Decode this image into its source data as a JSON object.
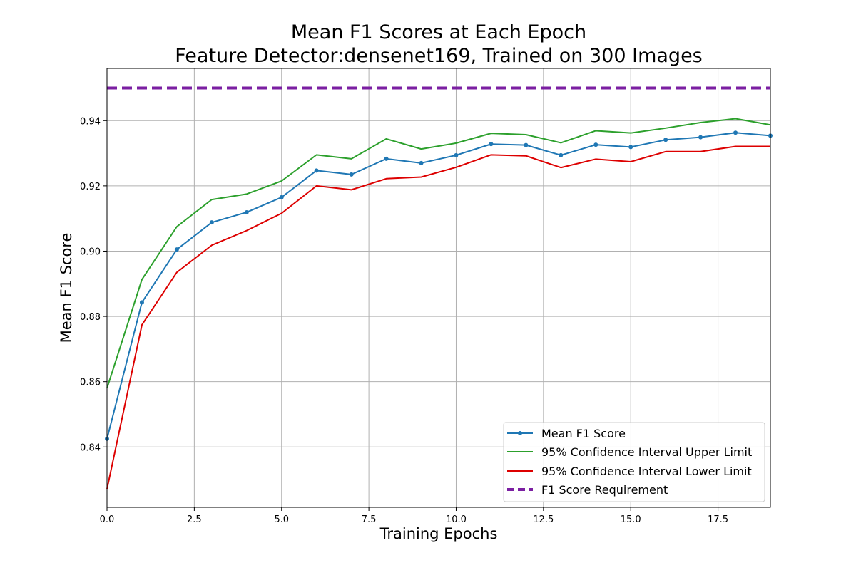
{
  "chart_data": {
    "type": "line",
    "title_line1": "Mean F1 Scores at Each Epoch",
    "title_line2": "Feature Detector:densenet169, Trained on 300 Images",
    "xlabel": "Training Epochs",
    "ylabel": "Mean F1 Score",
    "xlim": [
      0,
      19
    ],
    "ylim": [
      0.8215,
      0.956
    ],
    "xticks": [
      0.0,
      2.5,
      5.0,
      7.5,
      10.0,
      12.5,
      15.0,
      17.5
    ],
    "xtick_labels": [
      "0.0",
      "2.5",
      "5.0",
      "7.5",
      "10.0",
      "12.5",
      "15.0",
      "17.5"
    ],
    "yticks": [
      0.84,
      0.86,
      0.88,
      0.9,
      0.92,
      0.94
    ],
    "ytick_labels": [
      "0.84",
      "0.86",
      "0.88",
      "0.90",
      "0.92",
      "0.94"
    ],
    "grid": true,
    "legend_position": "lower-right",
    "x": [
      0,
      1,
      2,
      3,
      4,
      5,
      6,
      7,
      8,
      9,
      10,
      11,
      12,
      13,
      14,
      15,
      16,
      17,
      18,
      19
    ],
    "series": [
      {
        "name": "Mean F1 Score",
        "color": "#1f77b4",
        "style": "solid-markers",
        "values": [
          0.8425,
          0.8843,
          0.9005,
          0.9088,
          0.9119,
          0.9165,
          0.9247,
          0.9235,
          0.9283,
          0.927,
          0.9294,
          0.9328,
          0.9325,
          0.9294,
          0.9326,
          0.9319,
          0.9341,
          0.9349,
          0.9363,
          0.9354
        ]
      },
      {
        "name": "95% Confidence Interval Upper Limit",
        "color": "#2ca02c",
        "style": "solid",
        "values": [
          0.858,
          0.8913,
          0.9075,
          0.9158,
          0.9175,
          0.9215,
          0.9295,
          0.9283,
          0.9344,
          0.9313,
          0.9331,
          0.9361,
          0.9357,
          0.9332,
          0.9369,
          0.9362,
          0.9377,
          0.9394,
          0.9406,
          0.9387
        ]
      },
      {
        "name": "95% Confidence Interval Lower Limit",
        "color": "#dd0000",
        "style": "solid",
        "values": [
          0.8271,
          0.8774,
          0.8935,
          0.9018,
          0.9063,
          0.9116,
          0.92,
          0.9188,
          0.9222,
          0.9227,
          0.9257,
          0.9295,
          0.9292,
          0.9256,
          0.9282,
          0.9274,
          0.9305,
          0.9305,
          0.9321,
          0.9321
        ]
      },
      {
        "name": "F1 Score Requirement",
        "color": "#7b1fa2",
        "style": "dashed-hline",
        "y": 0.95
      }
    ]
  }
}
